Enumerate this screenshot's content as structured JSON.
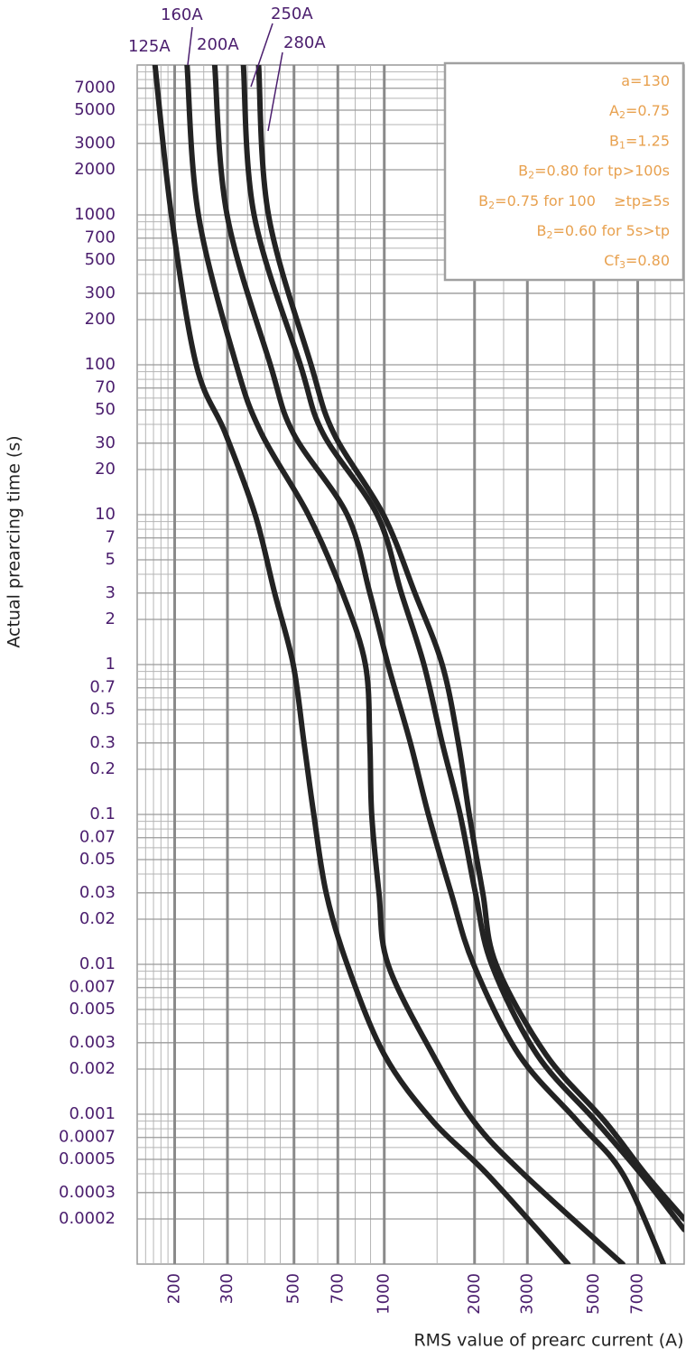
{
  "chart_data": {
    "type": "line",
    "xlabel": "RMS value of prearc current (A)",
    "ylabel": "Actual prearcing time (s)",
    "xscale": "log",
    "yscale": "log",
    "grid": true,
    "xlim": [
      150,
      10000
    ],
    "ylim": [
      0.0001,
      10000
    ],
    "xticks": [
      200,
      300,
      500,
      700,
      1000,
      2000,
      3000,
      5000,
      7000
    ],
    "yticks": [
      0.0002,
      0.0003,
      0.0005,
      0.0007,
      0.001,
      0.002,
      0.003,
      0.005,
      0.007,
      0.01,
      0.02,
      0.03,
      0.05,
      0.07,
      0.1,
      0.2,
      0.3,
      0.5,
      0.7,
      1,
      2,
      3,
      5,
      7,
      10,
      20,
      30,
      50,
      70,
      100,
      200,
      300,
      500,
      700,
      1000,
      2000,
      3000,
      5000,
      7000
    ],
    "x_minor_grid": [
      160,
      170,
      180,
      190,
      250,
      350,
      400,
      450,
      600,
      800,
      900,
      1500,
      2500,
      4000,
      6000,
      8000,
      9000
    ],
    "y_minor_grid": [
      0.0004,
      0.0006,
      0.0008,
      0.0009,
      0.004,
      0.006,
      0.008,
      0.009,
      0.04,
      0.06,
      0.08,
      0.09,
      0.4,
      0.6,
      0.8,
      0.9,
      4,
      6,
      8,
      9,
      40,
      60,
      80,
      90,
      400,
      600,
      800,
      900,
      4000,
      6000,
      8000,
      9000
    ],
    "series": [
      {
        "name": "125A",
        "color": "#232323",
        "x": [
          172,
          195,
          236,
          295,
          371,
          431,
          497,
          540,
          582,
          640,
          752,
          1000,
          1450,
          2200,
          4100
        ],
        "values": [
          10000,
          1000,
          100,
          35,
          10,
          3,
          1,
          0.3,
          0.1,
          0.03,
          0.01,
          0.0025,
          0.0009,
          0.0004,
          0.0001
        ]
      },
      {
        "name": "160A",
        "color": "#232323",
        "x": [
          220,
          240,
          321,
          389,
          558,
          726,
          865,
          895,
          908,
          960,
          1029,
          1452,
          1985,
          2911,
          6240
        ],
        "values": [
          10000,
          1000,
          100,
          35,
          10,
          3,
          1,
          0.3,
          0.1,
          0.03,
          0.01,
          0.0025,
          0.0009,
          0.0004,
          0.0001
        ]
      },
      {
        "name": "200A",
        "color": "#232323",
        "x": [
          272,
          299,
          417,
          497,
          752,
          895,
          1029,
          1222,
          1403,
          1670,
          1985,
          2810,
          4400,
          6240,
          8530
        ],
        "values": [
          10000,
          1000,
          100,
          35,
          10,
          3,
          1,
          0.3,
          0.1,
          0.03,
          0.01,
          0.0025,
          0.0009,
          0.0004,
          0.0001
        ]
      },
      {
        "name": "250A",
        "color": "#232323",
        "x": [
          339,
          368,
          525,
          624,
          946,
          1140,
          1356,
          1560,
          1790,
          2013,
          2280,
          3230,
          5070,
          7170,
          10000
        ],
        "values": [
          10000,
          1000,
          100,
          35,
          10,
          3,
          1,
          0.3,
          0.1,
          0.03,
          0.01,
          0.0025,
          0.0009,
          0.0004,
          0.00017
        ]
      },
      {
        "name": "280A",
        "color": "#232323",
        "x": [
          381,
          411,
          570,
          678,
          993,
          1265,
          1560,
          1766,
          1920,
          2130,
          2360,
          3460,
          5430,
          7420,
          10000
        ],
        "values": [
          10000,
          1000,
          100,
          35,
          10,
          3,
          1,
          0.3,
          0.1,
          0.03,
          0.01,
          0.0025,
          0.0009,
          0.0004,
          0.0002
        ]
      }
    ],
    "annotations": [
      {
        "base": "a=130"
      },
      {
        "base": "A",
        "sub": "2",
        "rest": "=0.75"
      },
      {
        "base": "B",
        "sub": "1",
        "rest": "=1.25"
      },
      {
        "base": "B",
        "sub": "2",
        "rest": "=0.80 for tp>100s"
      },
      {
        "base": "B",
        "sub": "2",
        "rest": "=0.75 for 100    ≥tp≥5s"
      },
      {
        "base": "B",
        "sub": "2",
        "rest": "=0.60 for 5s>tp"
      },
      {
        "base": "Cf",
        "sub": "3",
        "rest": "=0.80"
      }
    ]
  }
}
